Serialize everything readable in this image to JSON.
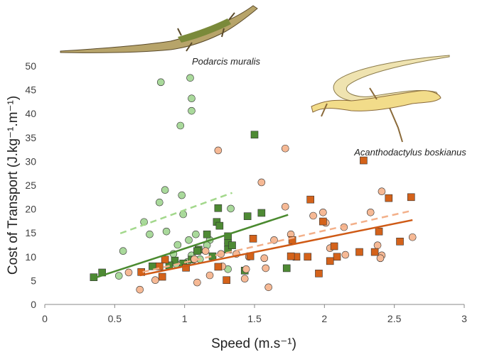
{
  "chart_data": {
    "type": "scatter",
    "x_label": "Speed (m.s⁻¹)",
    "y_label": "Cost of Transport (J.kg⁻¹.m⁻¹)",
    "annotations": [
      "Podarcis muralis",
      "Acanthodactylus boskianus"
    ],
    "xlim": [
      0,
      3
    ],
    "xticks": [
      0,
      0.5,
      1,
      1.5,
      2,
      2.5,
      3
    ],
    "ylim": [
      0,
      50
    ],
    "yticks": [
      0,
      5,
      10,
      15,
      20,
      25,
      30,
      35,
      40,
      45,
      50
    ],
    "grid": false,
    "series": [
      {
        "marker": "circle",
        "color": "#a9d99b",
        "x": [
          0.83,
          1.04,
          1.05,
          1.05,
          0.97,
          0.86,
          0.82,
          0.98,
          0.99,
          0.71,
          1.33,
          0.75,
          0.87,
          0.95,
          1.08,
          1.18,
          1.03,
          0.56,
          0.92,
          1.05,
          1.16,
          1.31,
          1.31,
          0.53,
          0.78,
          0.94,
          1.02,
          1.11
        ],
        "y": [
          46.6,
          47.5,
          43.2,
          40.6,
          37.5,
          24.0,
          21.4,
          22.9,
          18.9,
          17.3,
          20.1,
          14.7,
          15.3,
          12.5,
          14.7,
          13.5,
          13.5,
          11.2,
          10.6,
          10.3,
          12.4,
          12.8,
          7.4,
          6.0,
          8.0,
          8.5,
          8.9,
          9.5
        ]
      },
      {
        "marker": "square",
        "color": "#4e8a34",
        "x": [
          0.35,
          0.41,
          1.5,
          1.24,
          1.45,
          1.55,
          1.23,
          1.25,
          1.16,
          1.31,
          1.31,
          1.1,
          0.93,
          0.99,
          1.05,
          1.31,
          1.2,
          1.43,
          1.73,
          0.77,
          0.89,
          1.09,
          1.34
        ],
        "y": [
          5.7,
          6.7,
          35.6,
          20.2,
          18.5,
          19.2,
          17.3,
          16.5,
          14.7,
          14.3,
          12.9,
          11.5,
          9.2,
          8.6,
          9.4,
          11.5,
          10.1,
          7.1,
          7.6,
          8.0,
          8.2,
          11.2,
          12.4
        ]
      },
      {
        "marker": "circle",
        "color": "#f6b995",
        "x": [
          1.24,
          1.72,
          1.55,
          1.72,
          1.99,
          2.01,
          2.14,
          2.41,
          2.33,
          1.64,
          1.76,
          1.37,
          1.46,
          1.57,
          1.26,
          1.15,
          1.07,
          1.27,
          1.44,
          1.58,
          1.18,
          1.09,
          0.79,
          0.68,
          0.6,
          1.6,
          1.43,
          2.04,
          2.15,
          2.41,
          2.38,
          2.4,
          2.63,
          1.92
        ],
        "y": [
          32.3,
          32.7,
          25.6,
          20.5,
          19.3,
          17.1,
          16.2,
          23.7,
          19.3,
          13.5,
          14.7,
          10.6,
          10.0,
          9.7,
          10.6,
          11.2,
          9.5,
          8.0,
          7.4,
          7.6,
          6.1,
          4.6,
          5.1,
          3.1,
          6.7,
          3.6,
          5.4,
          11.8,
          10.4,
          10.3,
          12.4,
          9.7,
          14.1,
          18.6
        ]
      },
      {
        "marker": "square",
        "color": "#d4621a",
        "x": [
          2.28,
          1.9,
          2.62,
          2.46,
          1.99,
          1.49,
          1.77,
          2.39,
          2.07,
          2.54,
          2.25,
          2.36,
          1.88,
          1.8,
          2.09,
          2.04,
          1.76,
          1.47,
          1.24,
          1.3,
          1.96,
          0.86,
          0.82,
          0.69,
          0.84,
          1.01
        ],
        "y": [
          30.2,
          22.0,
          22.5,
          22.3,
          17.4,
          13.8,
          13.5,
          15.3,
          12.2,
          13.2,
          11.0,
          11.0,
          10.0,
          10.0,
          10.0,
          9.1,
          10.1,
          10.1,
          7.9,
          5.1,
          6.5,
          9.4,
          8.0,
          6.8,
          5.8,
          7.7
        ]
      }
    ],
    "trend_lines": [
      {
        "color": "#a3d88c",
        "dashed": true,
        "x": [
          0.54,
          1.34
        ],
        "y": [
          14.9,
          23.4
        ]
      },
      {
        "color": "#4a8a2f",
        "dashed": false,
        "x": [
          0.35,
          1.74
        ],
        "y": [
          5.5,
          18.8
        ]
      },
      {
        "color": "#f3b08a",
        "dashed": true,
        "x": [
          0.7,
          2.63
        ],
        "y": [
          6.8,
          19.7
        ]
      },
      {
        "color": "#cf5a15",
        "dashed": false,
        "x": [
          0.68,
          2.63
        ],
        "y": [
          6.1,
          17.7
        ]
      }
    ]
  }
}
